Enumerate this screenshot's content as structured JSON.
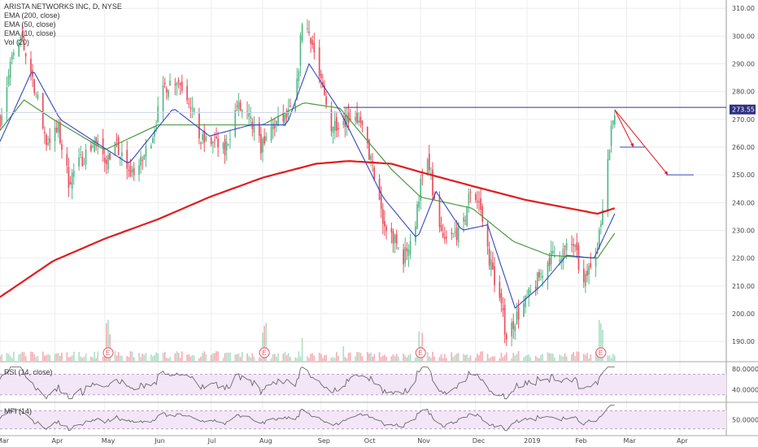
{
  "legend": {
    "title": "ARISTA NETWORKS INC, D, NYSE",
    "ema200": "EMA (200, close)",
    "ema50": "EMA (50, close)",
    "ema10": "EMA (10, close)",
    "vol": "Vol (20)"
  },
  "rsi_label": "RSI (14, close)",
  "mfi_label": "MFI (14)",
  "colors": {
    "up": "#53b987",
    "down": "#eb4d5c",
    "ema200": "#e31a1c",
    "ema50": "#4a9a3f",
    "ema10": "#3346c4",
    "panel_fill": "#f2e6f7",
    "panel_line": "#5a5a5a",
    "hline": "#303080",
    "arrow": "#e31a1c",
    "target_line": "#3346c4",
    "earnings": "#e05560"
  },
  "chart_data": {
    "type": "candlestick",
    "title": "ARISTA NETWORKS INC, D, NYSE",
    "y_axis": {
      "ticks": [
        "310.00",
        "300.00",
        "290.00",
        "280.00",
        "270.00",
        "260.00",
        "250.00",
        "240.00",
        "230.00",
        "220.00",
        "210.00",
        "200.00",
        "190.00"
      ],
      "ylim": [
        183,
        313
      ]
    },
    "x_axis": {
      "ticks": [
        "Mar",
        "Apr",
        "May",
        "Jun",
        "Jul",
        "Aug",
        "Sep",
        "Oct",
        "Nov",
        "Dec",
        "2019",
        "Feb",
        "Mar",
        "Apr"
      ],
      "tick_dates": [
        "2018-03-01",
        "2018-04-02",
        "2018-05-01",
        "2018-06-01",
        "2018-07-02",
        "2018-08-01",
        "2018-09-04",
        "2018-10-01",
        "2018-11-01",
        "2018-12-03",
        "2019-01-02",
        "2019-02-01",
        "2019-03-01",
        "2019-04-01"
      ],
      "xlim": [
        "2018-03-01",
        "2019-04-28"
      ]
    },
    "last_price": "273.55",
    "close_anchors": [
      [
        "2018-03-01",
        270
      ],
      [
        "2018-03-08",
        292
      ],
      [
        "2018-03-14",
        298
      ],
      [
        "2018-03-20",
        285
      ],
      [
        "2018-03-28",
        262
      ],
      [
        "2018-04-04",
        266
      ],
      [
        "2018-04-10",
        248
      ],
      [
        "2018-04-18",
        256
      ],
      [
        "2018-04-25",
        262
      ],
      [
        "2018-05-01",
        256
      ],
      [
        "2018-05-08",
        260
      ],
      [
        "2018-05-15",
        250
      ],
      [
        "2018-05-22",
        254
      ],
      [
        "2018-05-29",
        265
      ],
      [
        "2018-06-05",
        282
      ],
      [
        "2018-06-12",
        285
      ],
      [
        "2018-06-19",
        278
      ],
      [
        "2018-06-26",
        262
      ],
      [
        "2018-07-03",
        262
      ],
      [
        "2018-07-10",
        258
      ],
      [
        "2018-07-17",
        275
      ],
      [
        "2018-07-24",
        270
      ],
      [
        "2018-07-31",
        260
      ],
      [
        "2018-08-07",
        268
      ],
      [
        "2018-08-14",
        270
      ],
      [
        "2018-08-20",
        274
      ],
      [
        "2018-08-24",
        306
      ],
      [
        "2018-08-29",
        300
      ],
      [
        "2018-09-04",
        282
      ],
      [
        "2018-09-10",
        268
      ],
      [
        "2018-09-17",
        270
      ],
      [
        "2018-09-24",
        272
      ],
      [
        "2018-10-01",
        260
      ],
      [
        "2018-10-05",
        250
      ],
      [
        "2018-10-10",
        232
      ],
      [
        "2018-10-15",
        228
      ],
      [
        "2018-10-22",
        220
      ],
      [
        "2018-10-29",
        232
      ],
      [
        "2018-11-01",
        248
      ],
      [
        "2018-11-05",
        255
      ],
      [
        "2018-11-09",
        240
      ],
      [
        "2018-11-14",
        225
      ],
      [
        "2018-11-20",
        228
      ],
      [
        "2018-11-26",
        232
      ],
      [
        "2018-11-30",
        245
      ],
      [
        "2018-12-05",
        240
      ],
      [
        "2018-12-11",
        220
      ],
      [
        "2018-12-17",
        205
      ],
      [
        "2018-12-21",
        192
      ],
      [
        "2018-12-26",
        198
      ],
      [
        "2019-01-02",
        205
      ],
      [
        "2019-01-08",
        212
      ],
      [
        "2019-01-15",
        220
      ],
      [
        "2019-01-22",
        222
      ],
      [
        "2019-01-29",
        225
      ],
      [
        "2019-02-04",
        210
      ],
      [
        "2019-02-08",
        218
      ],
      [
        "2019-02-12",
        225
      ],
      [
        "2019-02-15",
        240
      ],
      [
        "2019-02-19",
        262
      ],
      [
        "2019-02-21",
        270
      ],
      [
        "2019-02-22",
        273.55
      ]
    ],
    "ema200_anchors": [
      [
        "2018-03-01",
        206
      ],
      [
        "2018-04-01",
        219
      ],
      [
        "2018-05-01",
        227
      ],
      [
        "2018-06-01",
        234
      ],
      [
        "2018-07-01",
        242
      ],
      [
        "2018-08-01",
        249
      ],
      [
        "2018-09-01",
        254
      ],
      [
        "2018-09-20",
        255
      ],
      [
        "2018-10-15",
        254
      ],
      [
        "2018-11-01",
        251
      ],
      [
        "2018-12-01",
        246
      ],
      [
        "2019-01-01",
        241
      ],
      [
        "2019-02-12",
        236
      ],
      [
        "2019-02-22",
        238
      ]
    ],
    "ema50_anchors": [
      [
        "2018-03-01",
        266
      ],
      [
        "2018-03-15",
        277
      ],
      [
        "2018-04-01",
        270
      ],
      [
        "2018-05-01",
        259
      ],
      [
        "2018-06-01",
        268
      ],
      [
        "2018-07-01",
        268
      ],
      [
        "2018-08-01",
        268
      ],
      [
        "2018-08-25",
        276
      ],
      [
        "2018-09-15",
        274
      ],
      [
        "2018-10-15",
        252
      ],
      [
        "2018-11-01",
        242
      ],
      [
        "2018-12-01",
        238
      ],
      [
        "2018-12-25",
        226
      ],
      [
        "2019-01-15",
        221
      ],
      [
        "2019-02-12",
        220
      ],
      [
        "2019-02-22",
        229
      ]
    ],
    "ema10_anchors": [
      [
        "2018-03-01",
        262
      ],
      [
        "2018-03-20",
        288
      ],
      [
        "2018-04-05",
        270
      ],
      [
        "2018-04-25",
        262
      ],
      [
        "2018-05-15",
        254
      ],
      [
        "2018-06-10",
        274
      ],
      [
        "2018-07-01",
        264
      ],
      [
        "2018-07-25",
        268
      ],
      [
        "2018-08-15",
        268
      ],
      [
        "2018-08-28",
        290
      ],
      [
        "2018-09-15",
        273
      ],
      [
        "2018-10-10",
        242
      ],
      [
        "2018-10-30",
        227
      ],
      [
        "2018-11-10",
        244
      ],
      [
        "2018-11-25",
        230
      ],
      [
        "2018-12-10",
        232
      ],
      [
        "2018-12-26",
        202
      ],
      [
        "2019-01-10",
        210
      ],
      [
        "2019-01-25",
        221
      ],
      [
        "2019-02-10",
        220
      ],
      [
        "2019-02-22",
        236
      ]
    ],
    "annotations": {
      "resistance_line": {
        "value": 274.3,
        "from": "2018-09-17",
        "to": "2019-04-28"
      },
      "arrows": [
        {
          "from": [
            "2019-02-22",
            273.5
          ],
          "to": [
            "2019-03-05",
            260
          ]
        },
        {
          "from": [
            "2019-02-22",
            273.5
          ],
          "to": [
            "2019-03-25",
            250
          ]
        }
      ],
      "target_lines": [
        {
          "value": 260,
          "from": "2019-02-25",
          "to": "2019-03-12"
        },
        {
          "value": 250,
          "from": "2019-03-24",
          "to": "2019-04-09"
        }
      ],
      "earnings_markers": [
        "2018-05-03",
        "2018-08-02",
        "2018-11-01",
        "2019-02-14"
      ],
      "earnings_label": "E"
    },
    "rsi": {
      "ticks": [
        "80.0000",
        "40.0000"
      ],
      "band": [
        70,
        30
      ],
      "ylim": [
        20,
        85
      ]
    },
    "mfi": {
      "ticks": [
        "50.0000"
      ],
      "band": [
        80,
        20
      ],
      "ylim": [
        0,
        100
      ]
    }
  }
}
